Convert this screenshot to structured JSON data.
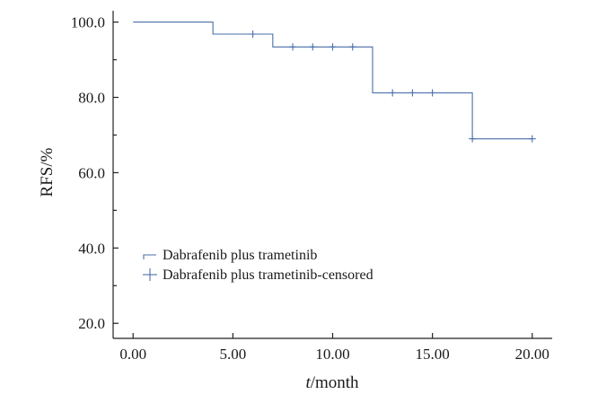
{
  "chart_data": {
    "type": "line",
    "title": "",
    "xlabel_italic": "t",
    "xlabel_rest": "/month",
    "ylabel": "RFS/%",
    "xlim": [
      -1,
      21
    ],
    "ylim": [
      16,
      103
    ],
    "x_ticks": [
      0,
      5,
      10,
      15,
      20
    ],
    "x_tick_labels": [
      "0.00",
      "5.00",
      "10.00",
      "15.00",
      "20.00"
    ],
    "y_ticks": [
      20,
      40,
      60,
      80,
      100
    ],
    "y_tick_labels": [
      "20.0",
      "40.0",
      "60.0",
      "80.0",
      "100.0"
    ],
    "y_minor_ticks": [
      30,
      50,
      70,
      90
    ],
    "grid": false,
    "legend_position": "lower-left",
    "series": [
      {
        "name": "Dabrafenib plus trametinib",
        "kind": "step",
        "color": "#4a6fa8",
        "x": [
          0,
          4,
          7,
          12,
          17,
          20
        ],
        "y": [
          100.0,
          96.8,
          93.4,
          81.2,
          69.0,
          69.0
        ]
      },
      {
        "name": "Dabrafenib plus trametinib-censored",
        "kind": "censor",
        "color": "#4a6fa8",
        "x": [
          6,
          8,
          9,
          10,
          11,
          13,
          14,
          15,
          17,
          20
        ],
        "y": [
          96.8,
          93.4,
          93.4,
          93.4,
          93.4,
          81.2,
          81.2,
          81.2,
          69.0,
          69.0
        ]
      }
    ]
  }
}
